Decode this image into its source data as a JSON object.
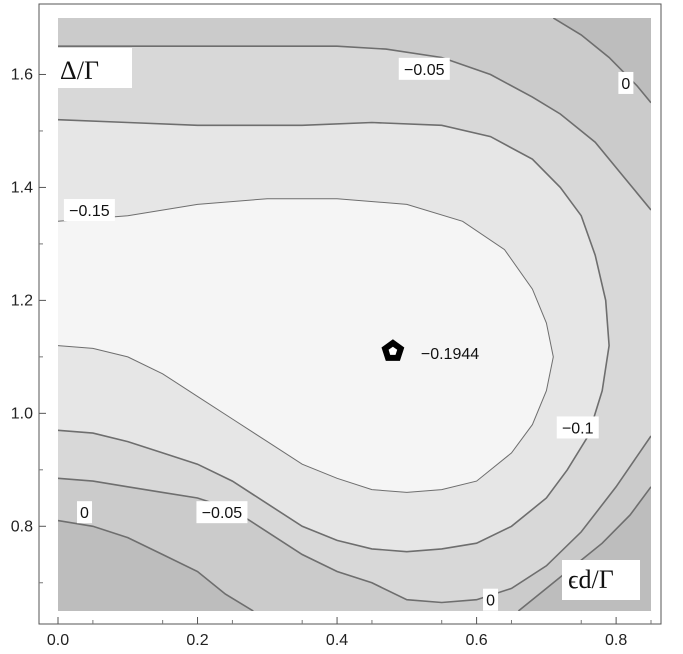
{
  "chart_data": {
    "type": "contour",
    "xlabel": "ϵd/Γ",
    "ylabel": "Δ/Γ",
    "xlim": [
      0.0,
      0.85
    ],
    "ylim": [
      0.65,
      1.7
    ],
    "x_ticks": [
      {
        "value": 0.0,
        "label": "0.0"
      },
      {
        "value": 0.2,
        "label": "0.2"
      },
      {
        "value": 0.4,
        "label": "0.4"
      },
      {
        "value": 0.6,
        "label": "0.6"
      },
      {
        "value": 0.8,
        "label": "0.8"
      }
    ],
    "y_ticks": [
      {
        "value": 0.8,
        "label": "0.8"
      },
      {
        "value": 1.0,
        "label": "1.0"
      },
      {
        "value": 1.2,
        "label": "1.2"
      },
      {
        "value": 1.4,
        "label": "1.4"
      },
      {
        "value": 1.6,
        "label": "1.6"
      }
    ],
    "fill_colors": {
      "above_0": "#bdbdbd",
      "between_0_-0.05": "#cbcbcb",
      "between_-0.05_-0.1": "#d8d8d8",
      "between_-0.1_-0.15": "#e6e6e6",
      "below_-0.15": "#f5f5f5"
    },
    "line_color": "#6e6e6e",
    "contours": [
      {
        "level": 0,
        "segments": [
          [
            [
              0.0,
              0.81
            ],
            [
              0.05,
              0.8
            ],
            [
              0.1,
              0.78
            ],
            [
              0.15,
              0.75
            ],
            [
              0.2,
              0.72
            ],
            [
              0.24,
              0.68
            ],
            [
              0.28,
              0.65
            ]
          ],
          [
            [
              0.66,
              0.65
            ],
            [
              0.7,
              0.69
            ],
            [
              0.74,
              0.73
            ],
            [
              0.78,
              0.77
            ],
            [
              0.82,
              0.82
            ],
            [
              0.85,
              0.87
            ]
          ],
          [
            [
              0.71,
              1.7
            ],
            [
              0.75,
              1.67
            ],
            [
              0.79,
              1.63
            ],
            [
              0.83,
              1.58
            ],
            [
              0.85,
              1.55
            ]
          ]
        ]
      },
      {
        "level": -0.05,
        "segments": [
          [
            [
              0.0,
              0.885
            ],
            [
              0.05,
              0.88
            ],
            [
              0.1,
              0.87
            ],
            [
              0.15,
              0.86
            ],
            [
              0.2,
              0.85
            ],
            [
              0.25,
              0.83
            ],
            [
              0.3,
              0.79
            ],
            [
              0.35,
              0.75
            ],
            [
              0.4,
              0.72
            ],
            [
              0.45,
              0.7
            ],
            [
              0.5,
              0.67
            ],
            [
              0.55,
              0.665
            ],
            [
              0.6,
              0.67
            ],
            [
              0.65,
              0.69
            ],
            [
              0.7,
              0.73
            ],
            [
              0.75,
              0.79
            ],
            [
              0.8,
              0.87
            ],
            [
              0.85,
              0.96
            ]
          ],
          [
            [
              0.0,
              1.65
            ],
            [
              0.1,
              1.65
            ],
            [
              0.2,
              1.65
            ],
            [
              0.3,
              1.65
            ],
            [
              0.4,
              1.65
            ],
            [
              0.47,
              1.645
            ],
            [
              0.55,
              1.63
            ],
            [
              0.62,
              1.6
            ],
            [
              0.68,
              1.56
            ],
            [
              0.72,
              1.53
            ],
            [
              0.77,
              1.48
            ],
            [
              0.81,
              1.42
            ],
            [
              0.85,
              1.36
            ]
          ]
        ]
      },
      {
        "level": -0.1,
        "segments": [
          [
            [
              0.0,
              0.97
            ],
            [
              0.05,
              0.965
            ],
            [
              0.1,
              0.95
            ],
            [
              0.15,
              0.93
            ],
            [
              0.2,
              0.91
            ],
            [
              0.25,
              0.88
            ],
            [
              0.3,
              0.84
            ],
            [
              0.35,
              0.8
            ],
            [
              0.4,
              0.775
            ],
            [
              0.45,
              0.76
            ],
            [
              0.5,
              0.755
            ],
            [
              0.55,
              0.76
            ],
            [
              0.6,
              0.77
            ],
            [
              0.65,
              0.8
            ],
            [
              0.7,
              0.85
            ],
            [
              0.73,
              0.9
            ],
            [
              0.76,
              0.96
            ],
            [
              0.78,
              1.04
            ],
            [
              0.79,
              1.12
            ],
            [
              0.785,
              1.2
            ],
            [
              0.77,
              1.28
            ],
            [
              0.75,
              1.35
            ],
            [
              0.72,
              1.4
            ],
            [
              0.68,
              1.45
            ],
            [
              0.62,
              1.49
            ],
            [
              0.55,
              1.51
            ],
            [
              0.45,
              1.515
            ],
            [
              0.35,
              1.51
            ],
            [
              0.2,
              1.51
            ],
            [
              0.1,
              1.515
            ],
            [
              0.0,
              1.52
            ]
          ]
        ]
      },
      {
        "level": -0.15,
        "segments": [
          [
            [
              0.0,
              1.12
            ],
            [
              0.05,
              1.115
            ],
            [
              0.1,
              1.1
            ],
            [
              0.15,
              1.07
            ],
            [
              0.2,
              1.03
            ],
            [
              0.25,
              0.99
            ],
            [
              0.3,
              0.95
            ],
            [
              0.35,
              0.91
            ],
            [
              0.4,
              0.885
            ],
            [
              0.45,
              0.865
            ],
            [
              0.5,
              0.86
            ],
            [
              0.55,
              0.865
            ],
            [
              0.6,
              0.88
            ],
            [
              0.65,
              0.93
            ],
            [
              0.68,
              0.98
            ],
            [
              0.7,
              1.04
            ],
            [
              0.71,
              1.1
            ],
            [
              0.7,
              1.16
            ],
            [
              0.68,
              1.22
            ],
            [
              0.64,
              1.29
            ],
            [
              0.58,
              1.34
            ],
            [
              0.5,
              1.37
            ],
            [
              0.4,
              1.38
            ],
            [
              0.3,
              1.38
            ],
            [
              0.2,
              1.37
            ],
            [
              0.1,
              1.35
            ],
            [
              0.0,
              1.34
            ]
          ]
        ]
      }
    ],
    "minimum": {
      "x": 0.48,
      "y": 1.11,
      "label": "−0.1944"
    },
    "annotations": [
      {
        "text": "−0.05",
        "x": 0.525,
        "y": 1.61
      },
      {
        "text": "0",
        "x": 0.814,
        "y": 1.585
      },
      {
        "text": "−0.15",
        "x": 0.045,
        "y": 1.36
      },
      {
        "text": "−0.1",
        "x": 0.745,
        "y": 0.975
      },
      {
        "text": "0",
        "x": 0.038,
        "y": 0.825
      },
      {
        "text": "−0.05",
        "x": 0.235,
        "y": 0.825
      },
      {
        "text": "0",
        "x": 0.62,
        "y": 0.67
      }
    ]
  }
}
